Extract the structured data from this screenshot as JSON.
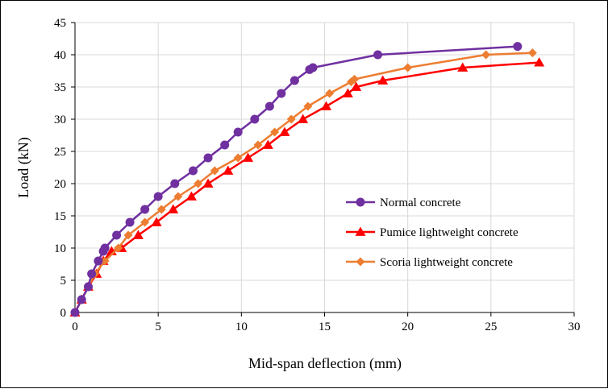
{
  "chart_data": {
    "type": "line",
    "title": "",
    "xlabel": "Mid-span deflection (mm)",
    "ylabel": "Load (kN)",
    "xlim": [
      0,
      30
    ],
    "ylim": [
      0,
      45
    ],
    "xticks": [
      0,
      5,
      10,
      15,
      20,
      25,
      30
    ],
    "yticks": [
      0,
      5,
      10,
      15,
      20,
      25,
      30,
      35,
      40,
      45
    ],
    "xtick_labels": [
      "0",
      "5",
      "10",
      "15",
      "20",
      "25",
      "30"
    ],
    "ytick_labels": [
      "0",
      "5",
      "10",
      "15",
      "20",
      "25",
      "30",
      "35",
      "40",
      "45"
    ],
    "grid": true,
    "legend_position": "right",
    "series": [
      {
        "name": "Normal concrete",
        "color": "#7030a0",
        "marker": "circle",
        "x": [
          0,
          0.4,
          0.8,
          1.0,
          1.4,
          1.7,
          1.8,
          2.5,
          3.3,
          4.2,
          5.0,
          6.0,
          7.1,
          8.0,
          9.0,
          9.8,
          10.8,
          11.7,
          12.4,
          13.2,
          14.1,
          14.3,
          18.2,
          26.6
        ],
        "y": [
          0,
          2,
          4,
          6,
          8,
          9.5,
          10,
          12,
          14,
          16,
          18,
          20,
          22,
          24,
          26,
          28,
          30,
          32,
          34,
          36,
          37.7,
          38,
          40,
          41.3
        ]
      },
      {
        "name": "Pumice lightweight concrete",
        "color": "#ff0000",
        "marker": "triangle",
        "x": [
          0,
          0.4,
          0.8,
          1.3,
          1.7,
          2.2,
          2.8,
          3.8,
          4.9,
          5.9,
          7.0,
          8.0,
          9.2,
          10.4,
          11.6,
          12.6,
          13.7,
          15.1,
          16.4,
          16.9,
          18.5,
          23.3,
          27.9
        ],
        "y": [
          0,
          2,
          4,
          6,
          8,
          9.5,
          10,
          12,
          14,
          16,
          18,
          20,
          22,
          24,
          26,
          28,
          30,
          32,
          34,
          35,
          36,
          38,
          38.8
        ]
      },
      {
        "name": "Scoria lightweight concrete",
        "color": "#ed7d31",
        "marker": "diamond",
        "x": [
          0,
          0.4,
          0.8,
          1.2,
          1.8,
          2.6,
          3.2,
          4.2,
          5.2,
          6.2,
          7.4,
          8.4,
          9.8,
          11.0,
          12.0,
          13.0,
          14.0,
          15.3,
          16.6,
          16.8,
          20.0,
          24.7,
          27.5
        ],
        "y": [
          0,
          2,
          4,
          6,
          8,
          10,
          12,
          14,
          16,
          18,
          20,
          22,
          24,
          26,
          28,
          30,
          32,
          34,
          35.8,
          36.2,
          38,
          40,
          40.3
        ]
      }
    ]
  }
}
